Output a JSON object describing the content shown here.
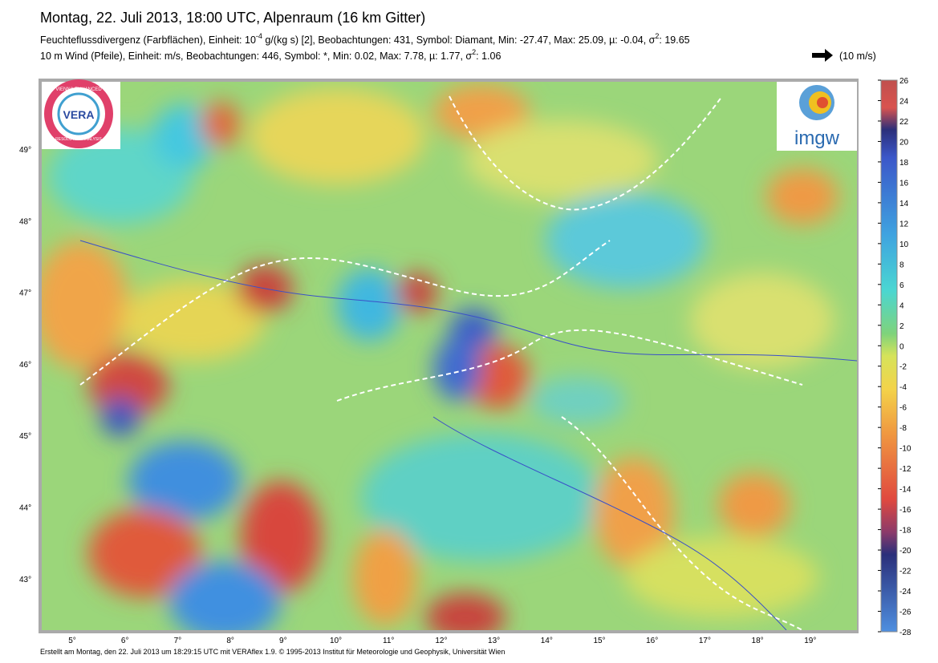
{
  "header": {
    "title": "Montag, 22. Juli 2013, 18:00 UTC, Alpenraum (16 km Gitter)",
    "line1": [
      "Feuchteflussdivergenz (Farbflächen), Einheit: 10",
      "-4",
      " g/(kg s) [2], Beobachtungen: 431, Symbol: Diamant, Min: -27.47, Max: 25.09,  µ: -0.04, σ",
      "2",
      ": 19.65"
    ],
    "line2": [
      "10 m Wind (Pfeile), Einheit: m/s, Beobachtungen: 446, Symbol: *, Min: 0.02, Max: 7.78,  µ: 1.77, σ",
      "2",
      ": 1.06"
    ],
    "wind_scale": "(10 m/s)"
  },
  "map": {
    "lat_labels": [
      "49°",
      "48°",
      "47°",
      "46°",
      "45°",
      "44°",
      "43°"
    ],
    "lon_labels": [
      "5°",
      "6°",
      "7°",
      "8°",
      "9°",
      "10°",
      "11°",
      "12°",
      "13°",
      "14°",
      "15°",
      "16°",
      "17°",
      "18°",
      "19°"
    ],
    "colorbar_labels": [
      26,
      24,
      22,
      20,
      18,
      16,
      14,
      12,
      10,
      8,
      6,
      4,
      2,
      0,
      -2,
      -4,
      -6,
      -8,
      -10,
      -12,
      -14,
      -16,
      -18,
      -20,
      -22,
      -24,
      -26,
      -28
    ]
  },
  "logos": {
    "left": [
      "VIENNA ENHANCED",
      "RESOLUTION ANALYSIS",
      "VERA"
    ],
    "right": "imgw"
  },
  "footer": "Erstellt am Montag, den 22. Juli 2013 um 18:29:15 UTC mit VERAflex 1.9.   © 1995-2013 Institut für Meteorologie und Geophysik, Universität Wien"
}
